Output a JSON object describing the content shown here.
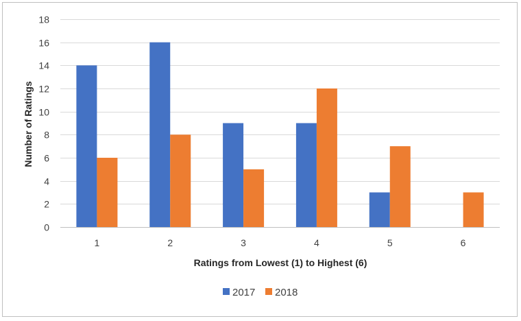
{
  "chart_data": {
    "type": "bar",
    "title": "",
    "xlabel": "Ratings from Lowest (1) to Highest (6)",
    "ylabel": "Number of Ratings",
    "categories": [
      "1",
      "2",
      "3",
      "4",
      "5",
      "6"
    ],
    "series": [
      {
        "name": "2017",
        "values": [
          14,
          16,
          9,
          9,
          3,
          0
        ],
        "color": "#4472c4"
      },
      {
        "name": "2018",
        "values": [
          6,
          8,
          5,
          12,
          7,
          3
        ],
        "color": "#ed7d31"
      }
    ],
    "ylim": [
      0,
      18
    ],
    "yticks": [
      0,
      2,
      4,
      6,
      8,
      10,
      12,
      14,
      16,
      18
    ],
    "grid": true,
    "legend_position": "bottom"
  }
}
